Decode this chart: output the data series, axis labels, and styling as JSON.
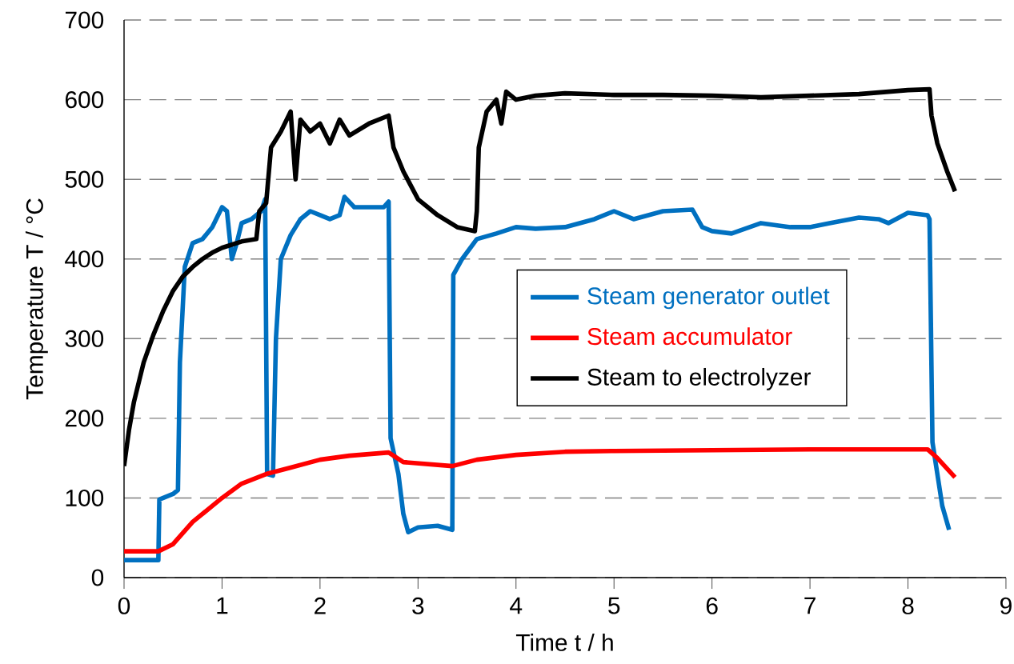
{
  "chart_data": {
    "type": "line",
    "xlabel": "Time t / h",
    "ylabel": "Temperature T / °C",
    "xlim": [
      0,
      9
    ],
    "xticks": [
      0,
      1,
      2,
      3,
      4,
      5,
      6,
      7,
      8,
      9
    ],
    "ylim": [
      0,
      700
    ],
    "yticks": [
      0,
      100,
      200,
      300,
      400,
      500,
      600,
      700
    ],
    "grid": "y",
    "legend": "right",
    "marker": "none",
    "line_style": "solid",
    "series": [
      {
        "name": "Steam generator outlet",
        "color": "#0070c0",
        "x": [
          0,
          0.35,
          0.36,
          0.5,
          0.55,
          0.57,
          0.62,
          0.7,
          0.8,
          0.9,
          1.0,
          1.05,
          1.1,
          1.15,
          1.2,
          1.3,
          1.4,
          1.44,
          1.46,
          1.52,
          1.55,
          1.6,
          1.7,
          1.8,
          1.9,
          2.0,
          2.1,
          2.2,
          2.25,
          2.35,
          2.5,
          2.65,
          2.7,
          2.72,
          2.8,
          2.85,
          2.9,
          3.0,
          3.2,
          3.35,
          3.36,
          3.45,
          3.6,
          3.8,
          4.0,
          4.2,
          4.5,
          4.8,
          5.0,
          5.2,
          5.5,
          5.8,
          5.9,
          6.0,
          6.2,
          6.5,
          6.8,
          7.0,
          7.2,
          7.5,
          7.7,
          7.8,
          8.0,
          8.2,
          8.22,
          8.25,
          8.3,
          8.35,
          8.42
        ],
        "values": [
          22,
          22,
          98,
          105,
          110,
          270,
          390,
          420,
          425,
          440,
          465,
          460,
          400,
          420,
          445,
          450,
          460,
          475,
          130,
          128,
          300,
          400,
          430,
          450,
          460,
          455,
          450,
          455,
          478,
          465,
          465,
          465,
          472,
          175,
          130,
          80,
          57,
          63,
          65,
          60,
          380,
          400,
          425,
          432,
          440,
          438,
          440,
          450,
          460,
          450,
          460,
          462,
          440,
          435,
          432,
          445,
          440,
          440,
          445,
          452,
          450,
          445,
          458,
          455,
          450,
          170,
          130,
          90,
          60
        ]
      },
      {
        "name": "Steam accumulator",
        "color": "#ff0000",
        "x": [
          0,
          0.35,
          0.5,
          0.7,
          1.0,
          1.2,
          1.45,
          1.7,
          2.0,
          2.3,
          2.7,
          2.85,
          3.35,
          3.6,
          4.0,
          4.5,
          5.0,
          6.0,
          7.0,
          8.2,
          8.3,
          8.48
        ],
        "values": [
          33,
          33,
          42,
          70,
          100,
          118,
          130,
          138,
          148,
          153,
          157,
          145,
          140,
          148,
          154,
          158,
          159,
          160,
          161,
          161,
          150,
          126
        ]
      },
      {
        "name": "Steam to electrolyzer",
        "color": "#000000",
        "x": [
          0,
          0.05,
          0.1,
          0.2,
          0.3,
          0.4,
          0.5,
          0.6,
          0.7,
          0.8,
          0.9,
          1.0,
          1.2,
          1.35,
          1.38,
          1.45,
          1.5,
          1.6,
          1.7,
          1.75,
          1.8,
          1.9,
          2.0,
          2.1,
          2.2,
          2.3,
          2.5,
          2.7,
          2.75,
          2.85,
          3.0,
          3.2,
          3.4,
          3.58,
          3.6,
          3.62,
          3.7,
          3.8,
          3.85,
          3.9,
          4.0,
          4.2,
          4.5,
          5.0,
          5.5,
          6.0,
          6.5,
          7.0,
          7.5,
          8.0,
          8.22,
          8.24,
          8.3,
          8.4,
          8.48
        ],
        "values": [
          140,
          185,
          220,
          270,
          305,
          335,
          360,
          378,
          390,
          400,
          408,
          414,
          422,
          425,
          460,
          470,
          540,
          560,
          585,
          500,
          575,
          560,
          570,
          545,
          575,
          555,
          570,
          580,
          540,
          510,
          475,
          455,
          440,
          435,
          460,
          540,
          585,
          600,
          570,
          610,
          600,
          605,
          608,
          606,
          606,
          605,
          603,
          605,
          607,
          612,
          613,
          580,
          545,
          510,
          485
        ]
      }
    ]
  }
}
